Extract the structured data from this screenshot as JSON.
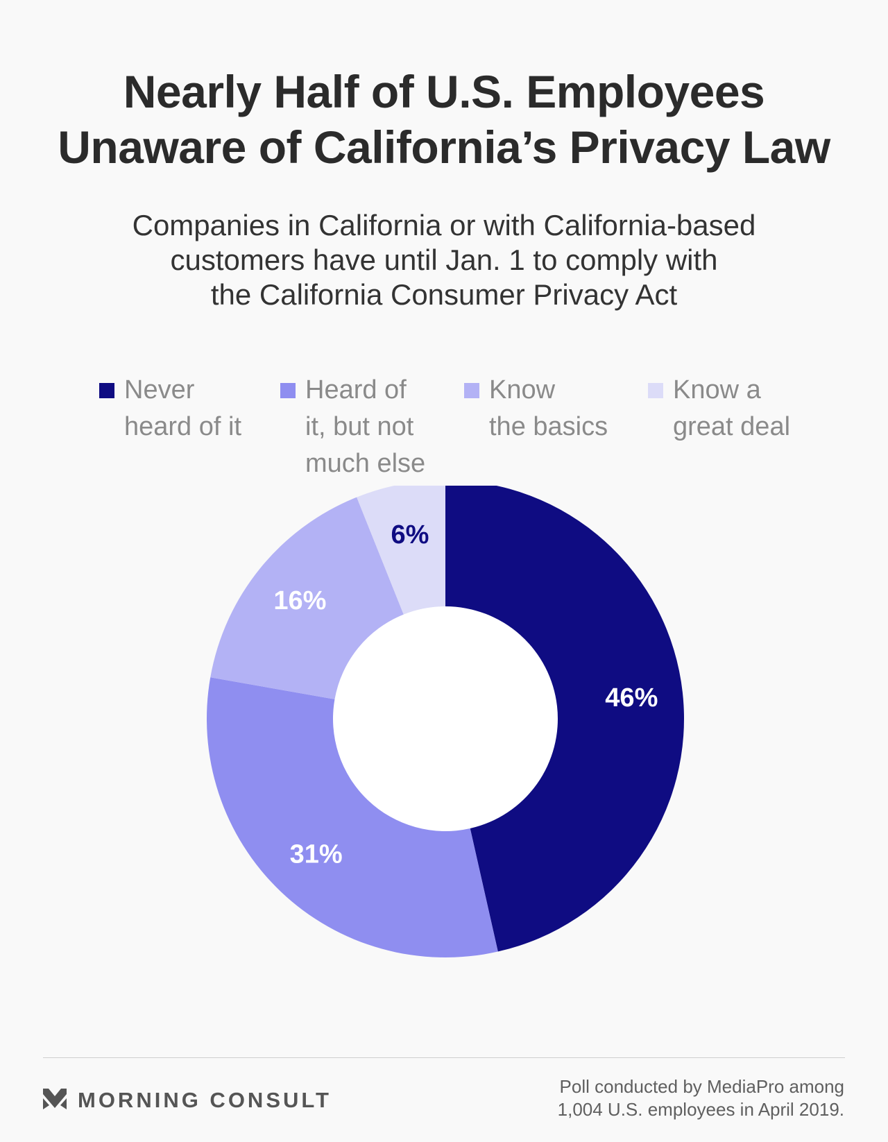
{
  "title": {
    "line1": "Nearly Half of U.S. Employees",
    "line2": "Unaware of California’s Privacy Law"
  },
  "subtitle": {
    "line1": "Companies in California or with California-based",
    "line2": "customers have until Jan. 1 to comply with",
    "line3": "the California Consumer Privacy Act"
  },
  "legend": [
    {
      "lines": [
        "Never",
        "heard of it"
      ],
      "color": "#0f0c82"
    },
    {
      "lines": [
        "Heard of",
        "it, but not",
        "much else"
      ],
      "color": "#8f8ef0"
    },
    {
      "lines": [
        "Know",
        "the basics"
      ],
      "color": "#b3b2f5"
    },
    {
      "lines": [
        "Know a",
        "great deal"
      ],
      "color": "#dcdcf8"
    }
  ],
  "chart_data": {
    "type": "pie",
    "title": "Nearly Half of U.S. Employees Unaware of California’s Privacy Law",
    "subtitle": "Companies in California or with California-based customers have until Jan. 1 to comply with the California Consumer Privacy Act",
    "categories": [
      "Never heard of it",
      "Heard of it, but not much else",
      "Know the basics",
      "Know a great deal"
    ],
    "values": [
      46,
      31,
      16,
      6
    ],
    "data_labels": [
      "46%",
      "31%",
      "16%",
      "6%"
    ],
    "colors": [
      "#0f0c82",
      "#8f8ef0",
      "#b3b2f5",
      "#dcdcf8"
    ],
    "label_colors": [
      "#ffffff",
      "#ffffff",
      "#ffffff",
      "#0f0c82"
    ],
    "donut": true,
    "legend_position": "top"
  },
  "footer": {
    "brand": "MORNING CONSULT",
    "source_line1": "Poll conducted by MediaPro among",
    "source_line2": "1,004 U.S. employees in April 2019."
  },
  "colors": {
    "background": "#f9f9f9",
    "title": "#2b2b2b",
    "legend_text": "#8a8a8a"
  }
}
